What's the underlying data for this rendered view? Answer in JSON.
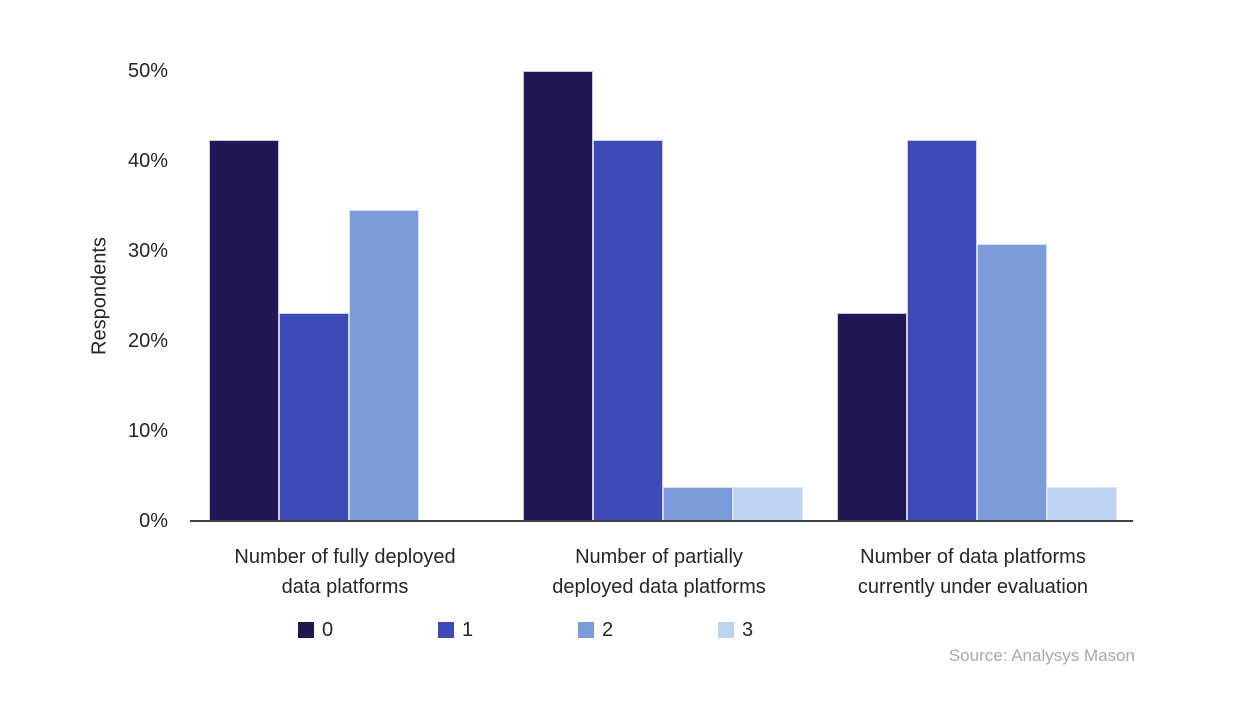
{
  "chart_data": {
    "type": "bar",
    "title": "",
    "ylabel": "Respondents",
    "unit": "%",
    "ylim": [
      0,
      50
    ],
    "ytick_labels": [
      "0%",
      "10%",
      "20%",
      "30%",
      "40%",
      "50%"
    ],
    "grid": false,
    "legend_position": "bottom",
    "categories": [
      "Number of fully deployed data platforms",
      "Number of partially deployed data platforms",
      "Number of data platforms currently under evaluation"
    ],
    "category_label_lines": [
      [
        "Number of fully deployed",
        "data platforms"
      ],
      [
        "Number of partially",
        "deployed data platforms"
      ],
      [
        "Number of data platforms",
        "currently under evaluation"
      ]
    ],
    "series": [
      {
        "name": "0",
        "color": "#221653",
        "values": [
          42.3,
          50.0,
          23.1
        ]
      },
      {
        "name": "1",
        "color": "#3D49B6",
        "values": [
          23.1,
          42.3,
          42.3
        ]
      },
      {
        "name": "2",
        "color": "#7B9BDA",
        "values": [
          34.6,
          3.8,
          30.8
        ]
      },
      {
        "name": "3",
        "color": "#BDD1F0",
        "values": [
          0,
          3.8,
          3.8
        ]
      }
    ],
    "axis_color": "#404040"
  },
  "source": {
    "label": "Source: Analysys Mason",
    "color": "#A9A9A9"
  }
}
